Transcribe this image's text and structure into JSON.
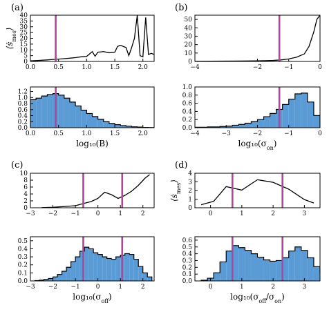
{
  "chart_data": [
    {
      "panel": "(a)",
      "type": "line",
      "ylabel": "⟨ṡ_mes⟩",
      "xlim": [
        0.0,
        2.2
      ],
      "ylim": [
        0,
        40
      ],
      "xticks": [
        "0.0",
        "0.5",
        "1.0",
        "1.5",
        "2.0"
      ],
      "xtick_values": [
        0.0,
        0.5,
        1.0,
        1.5,
        2.0
      ],
      "yticks": [
        "0",
        "5",
        "10",
        "15",
        "20",
        "25",
        "30",
        "35",
        "40"
      ],
      "ytick_values": [
        0,
        5,
        10,
        15,
        20,
        25,
        30,
        35,
        40
      ],
      "line_color": "#000000",
      "vline_color": "#b0449e",
      "vlines": [
        0.45
      ],
      "x": [
        0.0,
        0.1,
        0.2,
        0.3,
        0.4,
        0.5,
        0.6,
        0.7,
        0.8,
        0.9,
        1.0,
        1.1,
        1.15,
        1.2,
        1.3,
        1.4,
        1.5,
        1.55,
        1.6,
        1.7,
        1.75,
        1.8,
        1.85,
        1.9,
        1.95,
        2.0,
        2.05,
        2.1,
        2.15,
        2.2
      ],
      "y": [
        0.5,
        0.7,
        1.0,
        1.3,
        1.7,
        2.0,
        2.4,
        2.8,
        3.3,
        4.0,
        4.3,
        8.5,
        4.5,
        8.0,
        8.5,
        7.5,
        8.0,
        13.0,
        14.0,
        12.0,
        5.0,
        12.0,
        20.0,
        40.0,
        5.0,
        4.0,
        38.0,
        6.0,
        7.0,
        6.0
      ]
    },
    {
      "panel": "(a)",
      "type": "histogram",
      "xlabel": "log₁₀(B)",
      "xlim": [
        0.0,
        2.2
      ],
      "ylim": [
        0,
        1.35
      ],
      "xticks": [
        "0.0",
        "0.5",
        "1.0",
        "1.5",
        "2.0"
      ],
      "xtick_values": [
        0.0,
        0.5,
        1.0,
        1.5,
        2.0
      ],
      "yticks": [
        "0.0",
        "0.2",
        "0.4",
        "0.6",
        "0.8",
        "1.0",
        "1.2"
      ],
      "ytick_values": [
        0.0,
        0.2,
        0.4,
        0.6,
        0.8,
        1.0,
        1.2
      ],
      "fill_color": "#5b9bd5",
      "vline_color": "#b0449e",
      "vlines": [
        0.45
      ],
      "bin_start": 0.0,
      "bin_width": 0.1,
      "values": [
        0.93,
        0.98,
        1.05,
        1.1,
        1.13,
        1.08,
        0.98,
        0.85,
        0.72,
        0.58,
        0.47,
        0.37,
        0.28,
        0.2,
        0.14,
        0.1,
        0.07,
        0.05,
        0.03,
        0.02,
        0.01,
        0.005
      ]
    },
    {
      "panel": "(b)",
      "type": "line",
      "xlim": [
        -4,
        0
      ],
      "ylim": [
        0,
        55
      ],
      "xticks": [
        "−4",
        "−2",
        "−1",
        "0"
      ],
      "xtick_values": [
        -4,
        -2,
        -1,
        0
      ],
      "yticks": [
        "0",
        "10",
        "20",
        "30",
        "40",
        "50"
      ],
      "ytick_values": [
        0,
        10,
        20,
        30,
        40,
        50
      ],
      "line_color": "#000000",
      "vline_color": "#b0449e",
      "vlines": [
        -1.3
      ],
      "x": [
        -4,
        -3.5,
        -3.0,
        -2.5,
        -2.0,
        -1.75,
        -1.5,
        -1.25,
        -1.0,
        -0.75,
        -0.5,
        -0.35,
        -0.2,
        -0.1,
        0.0
      ],
      "y": [
        0.2,
        0.3,
        0.4,
        0.5,
        0.7,
        0.9,
        1.2,
        1.8,
        3.0,
        5.0,
        9.0,
        18.0,
        35.0,
        50.0,
        55.0
      ]
    },
    {
      "panel": "(b)",
      "type": "histogram",
      "xlabel": "log₁₀(σ_on)",
      "xlim": [
        -4,
        0
      ],
      "ylim": [
        0,
        1.0
      ],
      "xticks": [
        "−4",
        "−3",
        "−2",
        "−1",
        "0"
      ],
      "xtick_values": [
        -4,
        -3,
        -2,
        -1,
        0
      ],
      "yticks": [
        "0.0",
        "0.2",
        "0.4",
        "0.6",
        "0.8",
        "1.0"
      ],
      "ytick_values": [
        0.0,
        0.2,
        0.4,
        0.6,
        0.8,
        1.0
      ],
      "fill_color": "#5b9bd5",
      "vline_color": "#b0449e",
      "vlines": [
        -1.3
      ],
      "bin_start": -4.0,
      "bin_width": 0.2,
      "values": [
        0.01,
        0.01,
        0.02,
        0.02,
        0.03,
        0.04,
        0.06,
        0.08,
        0.11,
        0.15,
        0.2,
        0.27,
        0.35,
        0.45,
        0.57,
        0.7,
        0.83,
        0.85,
        0.63,
        0.3
      ]
    },
    {
      "panel": "(c)",
      "type": "line",
      "xlim": [
        -3,
        2.5
      ],
      "ylim": [
        0,
        10
      ],
      "xticks": [
        "−3",
        "−2",
        "−1",
        "0",
        "1",
        "2"
      ],
      "xtick_values": [
        -3,
        -2,
        -1,
        0,
        1,
        2
      ],
      "yticks": [
        "0",
        "2",
        "4",
        "6",
        "8",
        "10"
      ],
      "ytick_values": [
        0,
        2,
        4,
        6,
        8,
        10
      ],
      "line_color": "#000000",
      "vline_color": "#b0449e",
      "vlines": [
        -0.65,
        1.08
      ],
      "x": [
        -2.5,
        -2.0,
        -1.5,
        -1.0,
        -0.6,
        -0.3,
        0.0,
        0.3,
        0.6,
        0.9,
        1.2,
        1.5,
        1.8,
        2.1,
        2.3
      ],
      "y": [
        0.05,
        0.15,
        0.35,
        0.6,
        1.3,
        1.8,
        2.7,
        4.5,
        3.8,
        2.7,
        3.6,
        4.8,
        6.5,
        8.6,
        9.6
      ]
    },
    {
      "panel": "(c)",
      "type": "histogram",
      "xlabel": "log₁₀(σ_off)",
      "xlim": [
        -3,
        2.5
      ],
      "ylim": [
        0,
        0.55
      ],
      "xticks": [
        "−3",
        "−2",
        "−1",
        "0",
        "1",
        "2"
      ],
      "xtick_values": [
        -3,
        -2,
        -1,
        0,
        1,
        2
      ],
      "yticks": [
        "0.0",
        "0.1",
        "0.2",
        "0.3",
        "0.4",
        "0.5"
      ],
      "ytick_values": [
        0.0,
        0.1,
        0.2,
        0.3,
        0.4,
        0.5
      ],
      "fill_color": "#5b9bd5",
      "vline_color": "#b0449e",
      "vlines": [
        -0.65,
        1.08
      ],
      "bin_start": -2.8,
      "bin_width": 0.2,
      "values": [
        0.005,
        0.01,
        0.02,
        0.03,
        0.05,
        0.08,
        0.12,
        0.17,
        0.24,
        0.3,
        0.37,
        0.42,
        0.4,
        0.35,
        0.33,
        0.3,
        0.28,
        0.27,
        0.3,
        0.32,
        0.34,
        0.33,
        0.27,
        0.18,
        0.1,
        0.05
      ]
    },
    {
      "panel": "(d)",
      "type": "line",
      "ylabel": "⟨ṡ_mes⟩",
      "xlim": [
        -0.5,
        3.5
      ],
      "ylim": [
        0,
        4
      ],
      "xticks": [
        "0",
        "1",
        "2",
        "3"
      ],
      "xtick_values": [
        0,
        1,
        2,
        3
      ],
      "yticks": [
        "0",
        "1",
        "2",
        "3",
        "4"
      ],
      "ytick_values": [
        0,
        1,
        2,
        3,
        4
      ],
      "line_color": "#000000",
      "vline_color": "#b0449e",
      "vlines": [
        0.7,
        2.3
      ],
      "x": [
        -0.3,
        0.1,
        0.5,
        1.0,
        1.5,
        2.0,
        2.5,
        3.0,
        3.3
      ],
      "y": [
        0.35,
        0.75,
        2.45,
        2.05,
        3.25,
        2.95,
        2.15,
        0.95,
        0.55
      ]
    },
    {
      "panel": "(d)",
      "type": "histogram",
      "xlabel": "log₁₀(σ_off/σ_on)",
      "xlim": [
        -0.5,
        3.5
      ],
      "ylim": [
        0,
        0.65
      ],
      "xticks": [
        "0",
        "1",
        "2",
        "3"
      ],
      "xtick_values": [
        0,
        1,
        2,
        3
      ],
      "yticks": [
        "0.0",
        "0.1",
        "0.2",
        "0.3",
        "0.4",
        "0.5",
        "0.6"
      ],
      "ytick_values": [
        0.0,
        0.1,
        0.2,
        0.3,
        0.4,
        0.5,
        0.6
      ],
      "fill_color": "#5b9bd5",
      "vline_color": "#b0449e",
      "vlines": [
        0.7,
        2.3
      ],
      "bin_start": -0.3,
      "bin_width": 0.2,
      "values": [
        0.01,
        0.04,
        0.12,
        0.28,
        0.44,
        0.52,
        0.49,
        0.45,
        0.4,
        0.35,
        0.31,
        0.29,
        0.3,
        0.34,
        0.44,
        0.5,
        0.45,
        0.34,
        0.21,
        0.11,
        0.05,
        0.02
      ]
    }
  ]
}
